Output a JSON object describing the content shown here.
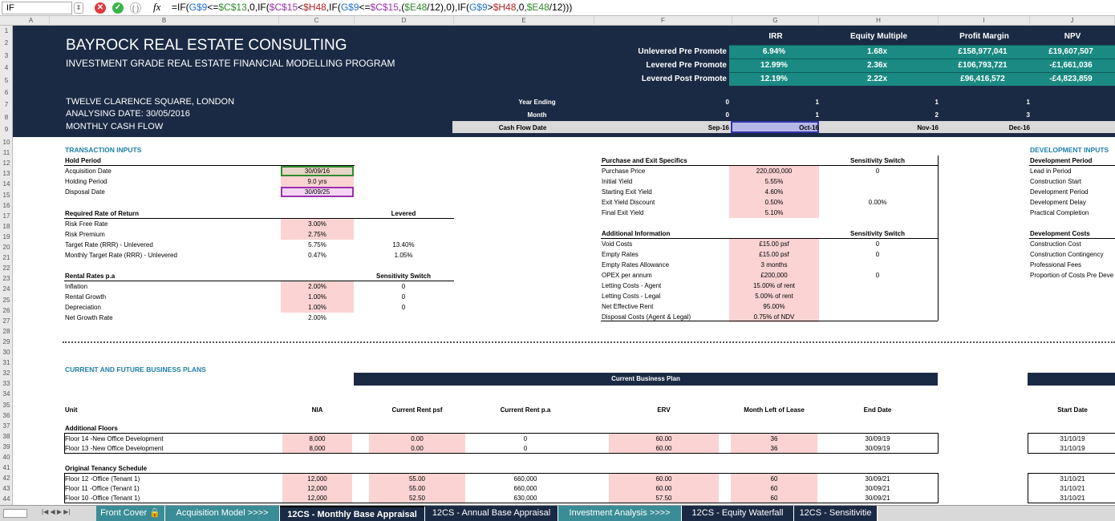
{
  "formula_bar": {
    "name_box": "IF",
    "fx": "fx",
    "stepper": "⇕",
    "cancel": "✕",
    "ok": "✓",
    "paren": "( )",
    "formula_parts": [
      {
        "text": "=IF(",
        "color": "#000000"
      },
      {
        "text": "G$9",
        "color": "#1f6fd1"
      },
      {
        "text": "<=",
        "color": "#000000"
      },
      {
        "text": "$C$13",
        "color": "#2e8b2e"
      },
      {
        "text": ",0,IF(",
        "color": "#000000"
      },
      {
        "text": "$C$15",
        "color": "#9b2fae"
      },
      {
        "text": "<",
        "color": "#000000"
      },
      {
        "text": "$H48",
        "color": "#b22222"
      },
      {
        "text": ",IF(",
        "color": "#000000"
      },
      {
        "text": "G$9",
        "color": "#1f6fd1"
      },
      {
        "text": "<=",
        "color": "#000000"
      },
      {
        "text": "$C$15",
        "color": "#9b2fae"
      },
      {
        "text": ",(",
        "color": "#000000"
      },
      {
        "text": "$E48",
        "color": "#2e8b2e"
      },
      {
        "text": "/12),0),IF(",
        "color": "#000000"
      },
      {
        "text": "G$9",
        "color": "#1f6fd1"
      },
      {
        "text": ">",
        "color": "#000000"
      },
      {
        "text": "$H48",
        "color": "#b22222"
      },
      {
        "text": ",0,",
        "color": "#000000"
      },
      {
        "text": "$E48",
        "color": "#2e8b2e"
      },
      {
        "text": "/12)))",
        "color": "#000000"
      }
    ]
  },
  "columns": [
    "A",
    "B",
    "C",
    "D",
    "E",
    "F",
    "G",
    "H",
    "I",
    "J"
  ],
  "rows": [
    "1",
    "2",
    "3",
    "4",
    "5",
    "6",
    "7",
    "8",
    "9",
    "10",
    "11",
    "12",
    "13",
    "14",
    "15",
    "16",
    "17",
    "18",
    "19",
    "20",
    "21",
    "22",
    "23",
    "24",
    "25",
    "26",
    "27",
    "28",
    "29",
    "30",
    "31",
    "32",
    "33",
    "34",
    "35",
    "36",
    "37",
    "38",
    "39",
    "40",
    "41",
    "42",
    "43",
    "44"
  ],
  "header": {
    "title": "BAYROCK REAL ESTATE CONSULTING",
    "subtitle": "INVESTMENT GRADE REAL ESTATE FINANCIAL MODELLING PROGRAM",
    "address": "TWELVE CLARENCE SQUARE, LONDON",
    "analysing_date": "ANALYSING DATE: 30/05/2016",
    "cashflow_type": "MONTHLY CASH FLOW"
  },
  "metrics": {
    "headers": [
      "IRR",
      "Equity Multiple",
      "Profit Margin",
      "NPV"
    ],
    "rows": [
      {
        "label": "Unlevered Pre Promote",
        "values": [
          "6.94%",
          "1.68x",
          "£158,977,041",
          "£19,607,507"
        ]
      },
      {
        "label": "Levered Pre Promote",
        "values": [
          "12.99%",
          "2.36x",
          "£106,793,721",
          "-£1,661,036"
        ]
      },
      {
        "label": "Levered Post Promote",
        "values": [
          "12.19%",
          "2.22x",
          "£96,416,572",
          "-£4,823,859"
        ]
      }
    ]
  },
  "timeline": {
    "year_label": "Year Ending",
    "month_label": "Month",
    "date_label": "Cash Flow Date",
    "years": [
      "0",
      "1",
      "1",
      "1"
    ],
    "months": [
      "0",
      "1",
      "2",
      "3"
    ],
    "dates": [
      "Sep-16",
      "Oct-16",
      "Nov-16",
      "Dec-16"
    ]
  },
  "transaction": {
    "title": "TRANSACTION INPUTS",
    "hold_title": "Hold Period",
    "hold": [
      {
        "label": "Acquisition Date",
        "value": "30/09/16"
      },
      {
        "label": "Holding Period",
        "value": "9.0 yrs"
      },
      {
        "label": "Disposal Date",
        "value": "30/09/25"
      }
    ],
    "rrr_title": "Required Rate of Return",
    "levered_label": "Levered",
    "rrr": [
      {
        "label": "Risk Free Rate",
        "value": "3.00%",
        "lev": ""
      },
      {
        "label": "Risk Premium",
        "value": "2.75%",
        "lev": ""
      },
      {
        "label": "Target Rate (RRR) - Unlevered",
        "value": "5.75%",
        "lev": "13.40%"
      },
      {
        "label": "Monthly Target Rate (RRR) - Unlevered",
        "value": "0.47%",
        "lev": "1.05%"
      }
    ],
    "rental_title": "Rental Rates p.a",
    "switch_label": "Sensitivity Switch",
    "rental": [
      {
        "label": "Inflation",
        "value": "2.00%",
        "sw": "0"
      },
      {
        "label": "Rental Growth",
        "value": "1.00%",
        "sw": "0"
      },
      {
        "label": "Depreciation",
        "value": "1.00%",
        "sw": "0"
      },
      {
        "label": "Net Growth Rate",
        "value": "2.00%",
        "sw": ""
      }
    ]
  },
  "purchase": {
    "title": "Purchase and Exit Specifics",
    "switch_label": "Sensitivity Switch",
    "items": [
      {
        "label": "Purchase Price",
        "value": "220,000,000",
        "sw": "0"
      },
      {
        "label": "Initial Yield",
        "value": "5.55%",
        "sw": ""
      },
      {
        "label": "Starting Exit Yield",
        "value": "4.60%",
        "sw": ""
      },
      {
        "label": "Exit Yield Discount",
        "value": "0.50%",
        "sw": "0.00%"
      },
      {
        "label": "Final Exit Yield",
        "value": "5.10%",
        "sw": ""
      }
    ]
  },
  "additional": {
    "title": "Additional Information",
    "switch_label": "Sensitivity Switch",
    "items": [
      {
        "label": "Void Costs",
        "value": "£15.00 psf",
        "sw": "0"
      },
      {
        "label": "Empty Rates",
        "value": "£15.00 psf",
        "sw": "0"
      },
      {
        "label": "Empty Rates Allowance",
        "value": "3 months",
        "sw": ""
      },
      {
        "label": "OPEX per annum",
        "value": "£200,000",
        "sw": "0"
      },
      {
        "label": "Letting Costs - Agent",
        "value": "15.00% of rent",
        "sw": ""
      },
      {
        "label": "Letting Costs - Legal",
        "value": "5.00% of rent",
        "sw": ""
      },
      {
        "label": "Net Effective Rent",
        "value": "95.00%",
        "sw": ""
      },
      {
        "label": "Disposal Costs (Agent & Legal)",
        "value": "0.75% of NDV",
        "sw": ""
      }
    ]
  },
  "development": {
    "title": "DEVELOPMENT INPUTS",
    "period_title": "Development Period",
    "period": [
      "Lead in Period",
      "Construction Start",
      "Development Period",
      "Development Delay",
      "Practical Completion"
    ],
    "costs_title": "Development Costs",
    "costs": [
      "Construction Cost",
      "Construction Contingency",
      "Professional Fees",
      "Proportion of Costs Pre Deve"
    ]
  },
  "plans": {
    "title": "CURRENT AND FUTURE BUSINESS PLANS",
    "current_label": "Current Business Plan",
    "headers": {
      "unit": "Unit",
      "nia": "NIA",
      "rent_psf": "Current Rent psf",
      "rent_pa": "Current Rent p.a",
      "erv": "ERV",
      "months": "Month Left of Lease",
      "end": "End Date",
      "start": "Start Date"
    },
    "group1": {
      "title": "Additional Floors",
      "rows": [
        {
          "unit": "Floor 14 -New Office Development",
          "nia": "8,000",
          "psf": "0.00",
          "pa": "0",
          "erv": "60.00",
          "months": "36",
          "end": "30/09/19",
          "start": "31/10/19"
        },
        {
          "unit": "Floor 13 -New Office Development",
          "nia": "8,000",
          "psf": "0.00",
          "pa": "0",
          "erv": "60.00",
          "months": "36",
          "end": "30/09/19",
          "start": "31/10/19"
        }
      ]
    },
    "group2": {
      "title": "Original Tenancy Schedule",
      "rows": [
        {
          "unit": "Floor 12 -Office (Tenant 1)",
          "nia": "12,000",
          "psf": "55.00",
          "pa": "660,000",
          "erv": "60.00",
          "months": "60",
          "end": "30/09/21",
          "start": "31/10/21"
        },
        {
          "unit": "Floor 11 -Office (Tenant 1)",
          "nia": "12,000",
          "psf": "55.00",
          "pa": "660,000",
          "erv": "60.00",
          "months": "60",
          "end": "30/09/21",
          "start": "31/10/21"
        },
        {
          "unit": "Floor 10 -Office (Tenant 1)",
          "nia": "12,000",
          "psf": "52.50",
          "pa": "630,000",
          "erv": "57.50",
          "months": "60",
          "end": "30/09/21",
          "start": "31/10/21"
        }
      ]
    }
  },
  "tabs": [
    {
      "label": "Front Cover 🔒",
      "color": "#3a8d96",
      "active": false
    },
    {
      "label": "Acquisition Model >>>>",
      "color": "#3a8d96",
      "active": false
    },
    {
      "label": "12CS - Monthly Base Appraisal",
      "color": "#1b2a44",
      "active": true
    },
    {
      "label": "12CS - Annual Base Appraisal",
      "color": "#1b2a44",
      "active": false
    },
    {
      "label": "Investment Analysis >>>>",
      "color": "#3a8d96",
      "active": false
    },
    {
      "label": "12CS - Equity Waterfall",
      "color": "#1b2a44",
      "active": false
    },
    {
      "label": "12CS - Sensitivitie",
      "color": "#1b2a44",
      "active": false
    }
  ],
  "nav_arrows": "|◀ ◀ ▶ ▶|"
}
